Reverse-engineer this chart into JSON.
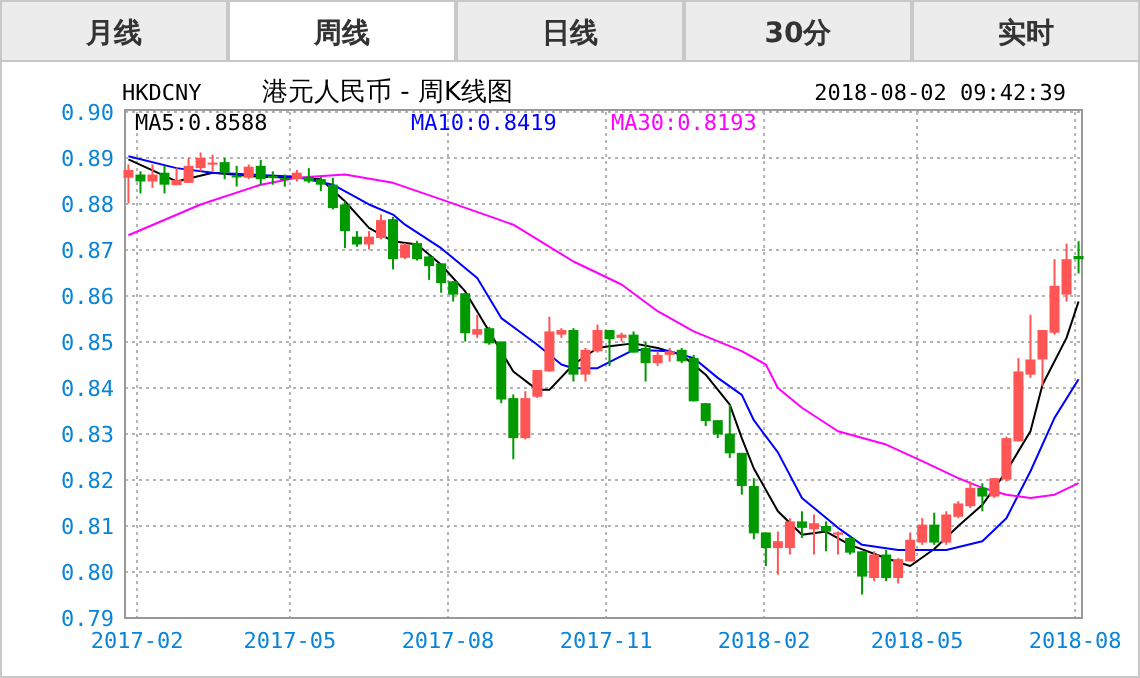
{
  "chart_data": {
    "type": "candlestick",
    "title": "港元人民币 - 周K线图",
    "subtitle": "HKDCNY",
    "annotations": [
      "2018-08-02 09:42:39",
      "月线",
      "周线",
      "日线",
      "30分",
      "实时"
    ],
    "x": [
      "2017-01-27",
      "2017-02-03",
      "2017-02-10",
      "2017-02-17",
      "2017-02-24",
      "2017-03-03",
      "2017-03-10",
      "2017-03-17",
      "2017-03-24",
      "2017-03-31",
      "2017-04-07",
      "2017-04-14",
      "2017-04-21",
      "2017-04-28",
      "2017-05-05",
      "2017-05-12",
      "2017-05-19",
      "2017-05-26",
      "2017-06-02",
      "2017-06-09",
      "2017-06-16",
      "2017-06-23",
      "2017-06-30",
      "2017-07-07",
      "2017-07-14",
      "2017-07-21",
      "2017-07-28",
      "2017-08-04",
      "2017-08-11",
      "2017-08-18",
      "2017-08-25",
      "2017-09-01",
      "2017-09-08",
      "2017-09-15",
      "2017-09-22",
      "2017-09-29",
      "2017-10-06",
      "2017-10-13",
      "2017-10-20",
      "2017-10-27",
      "2017-11-03",
      "2017-11-10",
      "2017-11-17",
      "2017-11-24",
      "2017-12-01",
      "2017-12-08",
      "2017-12-15",
      "2017-12-22",
      "2017-12-29",
      "2018-01-05",
      "2018-01-12",
      "2018-01-19",
      "2018-01-26",
      "2018-02-02",
      "2018-02-09",
      "2018-02-16",
      "2018-02-23",
      "2018-03-02",
      "2018-03-09",
      "2018-03-16",
      "2018-03-23",
      "2018-03-30",
      "2018-04-06",
      "2018-04-13",
      "2018-04-20",
      "2018-04-27",
      "2018-05-04",
      "2018-05-11",
      "2018-05-18",
      "2018-05-25",
      "2018-06-01",
      "2018-06-08",
      "2018-06-15",
      "2018-06-22",
      "2018-06-29",
      "2018-07-06",
      "2018-07-13",
      "2018-07-20",
      "2018-07-27",
      "2018-08-03"
    ],
    "ohlc": [
      [
        0.8857,
        0.8886,
        0.8801,
        0.8874
      ],
      [
        0.8864,
        0.8871,
        0.8823,
        0.8849
      ],
      [
        0.8849,
        0.8886,
        0.8835,
        0.8864
      ],
      [
        0.8868,
        0.8883,
        0.8823,
        0.8842
      ],
      [
        0.8841,
        0.8878,
        0.8841,
        0.8852
      ],
      [
        0.8846,
        0.89,
        0.8846,
        0.8883
      ],
      [
        0.8878,
        0.8912,
        0.8871,
        0.89
      ],
      [
        0.8886,
        0.8907,
        0.8871,
        0.889
      ],
      [
        0.8891,
        0.89,
        0.8854,
        0.8868
      ],
      [
        0.8862,
        0.8883,
        0.8838,
        0.8859
      ],
      [
        0.8857,
        0.8886,
        0.8854,
        0.8881
      ],
      [
        0.8883,
        0.8896,
        0.8842,
        0.8854
      ],
      [
        0.8861,
        0.8871,
        0.8842,
        0.8857
      ],
      [
        0.8857,
        0.8864,
        0.8838,
        0.8852
      ],
      [
        0.8854,
        0.8874,
        0.8849,
        0.8868
      ],
      [
        0.8859,
        0.8878,
        0.8846,
        0.8849
      ],
      [
        0.8854,
        0.8859,
        0.8828,
        0.8842
      ],
      [
        0.8842,
        0.8857,
        0.8788,
        0.8791
      ],
      [
        0.8799,
        0.8806,
        0.8704,
        0.8741
      ],
      [
        0.8729,
        0.8741,
        0.8707,
        0.8712
      ],
      [
        0.8712,
        0.8741,
        0.8701,
        0.8729
      ],
      [
        0.8726,
        0.8777,
        0.8723,
        0.8765
      ],
      [
        0.8767,
        0.8772,
        0.8658,
        0.868
      ],
      [
        0.8683,
        0.8715,
        0.868,
        0.8712
      ],
      [
        0.8715,
        0.872,
        0.8677,
        0.868
      ],
      [
        0.8686,
        0.869,
        0.8635,
        0.8665
      ],
      [
        0.8671,
        0.8671,
        0.8607,
        0.8628
      ],
      [
        0.8632,
        0.8632,
        0.8588,
        0.8603
      ],
      [
        0.8606,
        0.8606,
        0.8501,
        0.8519
      ],
      [
        0.8516,
        0.8559,
        0.8509,
        0.8528
      ],
      [
        0.853,
        0.8533,
        0.8494,
        0.8497
      ],
      [
        0.8501,
        0.8501,
        0.8367,
        0.8375
      ],
      [
        0.8378,
        0.8386,
        0.8245,
        0.8291
      ],
      [
        0.8291,
        0.8393,
        0.8288,
        0.8378
      ],
      [
        0.8381,
        0.8439,
        0.8378,
        0.8439
      ],
      [
        0.8436,
        0.8555,
        0.8436,
        0.8523
      ],
      [
        0.8516,
        0.853,
        0.8509,
        0.8526
      ],
      [
        0.8526,
        0.853,
        0.8414,
        0.8429
      ],
      [
        0.8429,
        0.8487,
        0.8414,
        0.8483
      ],
      [
        0.848,
        0.8538,
        0.8477,
        0.8526
      ],
      [
        0.8526,
        0.8526,
        0.8448,
        0.8506
      ],
      [
        0.8509,
        0.852,
        0.8501,
        0.8516
      ],
      [
        0.8516,
        0.8523,
        0.8477,
        0.8477
      ],
      [
        0.8487,
        0.8501,
        0.8414,
        0.8454
      ],
      [
        0.8454,
        0.848,
        0.8448,
        0.8472
      ],
      [
        0.8472,
        0.8487,
        0.8457,
        0.848
      ],
      [
        0.8483,
        0.8487,
        0.8454,
        0.8458
      ],
      [
        0.8465,
        0.8472,
        0.8371,
        0.8371
      ],
      [
        0.8367,
        0.8367,
        0.8317,
        0.8328
      ],
      [
        0.833,
        0.833,
        0.8291,
        0.8299
      ],
      [
        0.8301,
        0.8364,
        0.8248,
        0.8258
      ],
      [
        0.8259,
        0.8259,
        0.8168,
        0.8187
      ],
      [
        0.8187,
        0.8204,
        0.8071,
        0.8084
      ],
      [
        0.8086,
        0.8086,
        0.8013,
        0.8052
      ],
      [
        0.8052,
        0.8088,
        0.7994,
        0.8067
      ],
      [
        0.8052,
        0.8117,
        0.8038,
        0.811
      ],
      [
        0.811,
        0.8132,
        0.8074,
        0.8096
      ],
      [
        0.8093,
        0.8125,
        0.8038,
        0.8106
      ],
      [
        0.81,
        0.811,
        0.8045,
        0.8088
      ],
      [
        0.8081,
        0.8088,
        0.8038,
        0.8086
      ],
      [
        0.8074,
        0.8077,
        0.8038,
        0.8042
      ],
      [
        0.8045,
        0.8045,
        0.7951,
        0.799
      ],
      [
        0.7987,
        0.8045,
        0.798,
        0.8038
      ],
      [
        0.8038,
        0.8048,
        0.798,
        0.7987
      ],
      [
        0.7987,
        0.803,
        0.7975,
        0.8028
      ],
      [
        0.8023,
        0.8086,
        0.8023,
        0.807
      ],
      [
        0.8064,
        0.8117,
        0.8059,
        0.8103
      ],
      [
        0.8103,
        0.8129,
        0.8059,
        0.8064
      ],
      [
        0.8064,
        0.8132,
        0.8059,
        0.8125
      ],
      [
        0.812,
        0.8154,
        0.8117,
        0.8149
      ],
      [
        0.8143,
        0.8197,
        0.8139,
        0.8183
      ],
      [
        0.8183,
        0.8193,
        0.8132,
        0.8164
      ],
      [
        0.8164,
        0.8204,
        0.8161,
        0.8204
      ],
      [
        0.8201,
        0.8294,
        0.8197,
        0.8291
      ],
      [
        0.8284,
        0.8465,
        0.8284,
        0.8436
      ],
      [
        0.8429,
        0.8559,
        0.8422,
        0.8462
      ],
      [
        0.8462,
        0.8526,
        0.8404,
        0.8526
      ],
      [
        0.852,
        0.868,
        0.8516,
        0.8622
      ],
      [
        0.8603,
        0.8714,
        0.8588,
        0.868
      ],
      [
        0.8687,
        0.8719,
        0.8649,
        0.868
      ]
    ],
    "colors": [
      "#ff5555",
      "#009900",
      "#ff5555",
      "#009900",
      "#ff5555",
      "#ff5555",
      "#ff5555",
      "#ff5555",
      "#009900",
      "#009900",
      "#ff5555",
      "#009900",
      "#009900",
      "#009900",
      "#ff5555",
      "#009900",
      "#009900",
      "#009900",
      "#009900",
      "#009900",
      "#ff5555",
      "#ff5555",
      "#009900",
      "#ff5555",
      "#009900",
      "#009900",
      "#009900",
      "#009900",
      "#009900",
      "#ff5555",
      "#009900",
      "#009900",
      "#009900",
      "#ff5555",
      "#ff5555",
      "#ff5555",
      "#ff5555",
      "#009900",
      "#ff5555",
      "#ff5555",
      "#009900",
      "#ff5555",
      "#009900",
      "#009900",
      "#ff5555",
      "#ff5555",
      "#009900",
      "#009900",
      "#009900",
      "#009900",
      "#009900",
      "#009900",
      "#009900",
      "#009900",
      "#ff5555",
      "#ff5555",
      "#009900",
      "#ff5555",
      "#009900",
      "#ff5555",
      "#009900",
      "#009900",
      "#ff5555",
      "#009900",
      "#ff5555",
      "#ff5555",
      "#ff5555",
      "#009900",
      "#ff5555",
      "#ff5555",
      "#ff5555",
      "#009900",
      "#ff5555",
      "#ff5555",
      "#ff5555",
      "#ff5555",
      "#ff5555",
      "#ff5555",
      "#ff5555",
      "#009900"
    ],
    "series": [
      {
        "name": "MA5:0.8588",
        "color": "#000000",
        "type": "line",
        "x": [
          "2017-01-27",
          "2017-02-24",
          "2017-03-17",
          "2017-04-14",
          "2017-05-05",
          "2017-05-19",
          "2017-06-02",
          "2017-06-16",
          "2017-06-30",
          "2017-07-14",
          "2017-07-28",
          "2017-08-11",
          "2017-08-25",
          "2017-09-08",
          "2017-09-22",
          "2017-09-29",
          "2017-10-13",
          "2017-10-27",
          "2017-11-03",
          "2017-11-17",
          "2017-12-01",
          "2017-12-15",
          "2017-12-29",
          "2018-01-12",
          "2018-01-19",
          "2018-01-26",
          "2018-02-09",
          "2018-02-23",
          "2018-03-09",
          "2018-03-23",
          "2018-04-13",
          "2018-04-27",
          "2018-05-11",
          "2018-05-25",
          "2018-06-08",
          "2018-06-22",
          "2018-07-06",
          "2018-07-13",
          "2018-07-27",
          "2018-08-03"
        ],
        "values": [
          0.8897,
          0.8849,
          0.8868,
          0.8859,
          0.8857,
          0.8854,
          0.8806,
          0.8748,
          0.8719,
          0.8712,
          0.8668,
          0.861,
          0.8523,
          0.8436,
          0.8396,
          0.8396,
          0.8451,
          0.8487,
          0.8491,
          0.8497,
          0.8487,
          0.8472,
          0.8429,
          0.8364,
          0.8291,
          0.8225,
          0.8132,
          0.8081,
          0.8088,
          0.8059,
          0.803,
          0.8013,
          0.805,
          0.81,
          0.8146,
          0.8219,
          0.8306,
          0.8407,
          0.8509,
          0.8588
        ]
      },
      {
        "name": "MA10:0.8419",
        "color": "#0000ff",
        "type": "line",
        "x": [
          "2017-01-27",
          "2017-02-24",
          "2017-03-17",
          "2017-05-05",
          "2017-05-26",
          "2017-06-16",
          "2017-06-30",
          "2017-07-07",
          "2017-07-28",
          "2017-08-18",
          "2017-09-01",
          "2017-09-22",
          "2017-10-06",
          "2017-10-13",
          "2017-10-27",
          "2017-11-17",
          "2017-12-08",
          "2017-12-22",
          "2018-01-05",
          "2018-01-19",
          "2018-01-26",
          "2018-02-09",
          "2018-02-23",
          "2018-03-16",
          "2018-03-30",
          "2018-04-20",
          "2018-05-18",
          "2018-06-08",
          "2018-06-22",
          "2018-07-06",
          "2018-07-20",
          "2018-08-03"
        ],
        "values": [
          0.8904,
          0.8878,
          0.8868,
          0.8859,
          0.8842,
          0.8799,
          0.8777,
          0.8755,
          0.8704,
          0.8639,
          0.8552,
          0.8494,
          0.8451,
          0.8443,
          0.8443,
          0.8483,
          0.848,
          0.8465,
          0.8422,
          0.8385,
          0.833,
          0.826,
          0.8161,
          0.8096,
          0.8059,
          0.8048,
          0.8048,
          0.8067,
          0.8117,
          0.8219,
          0.8335,
          0.8419
        ]
      },
      {
        "name": "MA30:0.8193",
        "color": "#ff00ff",
        "type": "line",
        "x": [
          "2017-01-27",
          "2017-03-10",
          "2017-04-14",
          "2017-05-05",
          "2017-06-02",
          "2017-06-30",
          "2017-07-28",
          "2017-09-08",
          "2017-10-13",
          "2017-11-10",
          "2017-12-01",
          "2017-12-22",
          "2018-01-19",
          "2018-02-02",
          "2018-02-09",
          "2018-02-23",
          "2018-03-16",
          "2018-04-13",
          "2018-05-04",
          "2018-05-25",
          "2018-06-08",
          "2018-06-22",
          "2018-07-06",
          "2018-07-20",
          "2018-08-03"
        ],
        "values": [
          0.8732,
          0.8799,
          0.8842,
          0.8857,
          0.8864,
          0.8846,
          0.881,
          0.8755,
          0.8675,
          0.8625,
          0.8567,
          0.8523,
          0.848,
          0.8451,
          0.84,
          0.8357,
          0.8306,
          0.8277,
          0.8241,
          0.8204,
          0.8183,
          0.8168,
          0.8161,
          0.8168,
          0.8193
        ]
      }
    ],
    "xlim": [
      "2017-01-25",
      "2018-08-05"
    ],
    "ylim": [
      0.79,
      0.9
    ],
    "xticks": [
      {
        "value": "2017-02-01",
        "label": "2017-02"
      },
      {
        "value": "2017-05-01",
        "label": "2017-05"
      },
      {
        "value": "2017-08-01",
        "label": "2017-08"
      },
      {
        "value": "2017-11-01",
        "label": "2017-11"
      },
      {
        "value": "2018-02-01",
        "label": "2018-02"
      },
      {
        "value": "2018-05-01",
        "label": "2018-05"
      },
      {
        "value": "2018-08-01",
        "label": "2018-08"
      }
    ],
    "yticks": [
      0.79,
      {
        "value": 0.8,
        "label": "0.80"
      },
      0.81,
      0.82,
      0.83,
      0.84,
      0.85,
      0.86,
      0.87,
      0.88,
      0.89,
      {
        "value": 0.9,
        "label": "0.90"
      }
    ],
    "grid": true,
    "legend": "top"
  }
}
